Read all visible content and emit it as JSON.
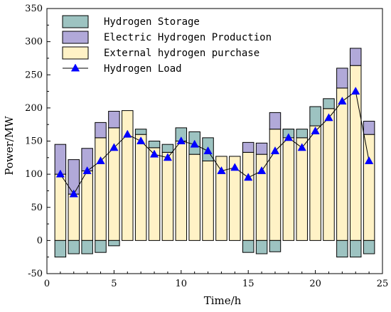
{
  "chart_data": {
    "type": "bar",
    "subtype": "stacked-bar-with-line",
    "xlabel": "Time/h",
    "ylabel": "Power/MW",
    "xlim": [
      0,
      25
    ],
    "ylim": [
      -50,
      350
    ],
    "xticks": [
      0,
      5,
      10,
      15,
      20,
      25
    ],
    "yticks": [
      -50,
      0,
      50,
      100,
      150,
      200,
      250,
      300,
      350
    ],
    "grid": false,
    "legend_position": "top-left",
    "x": [
      1,
      2,
      3,
      4,
      5,
      6,
      7,
      8,
      9,
      10,
      11,
      12,
      13,
      14,
      15,
      16,
      17,
      18,
      19,
      20,
      21,
      22,
      23,
      24
    ],
    "series": [
      {
        "name": "Hydrogen Storage",
        "kind": "bar",
        "color": "#9dc3c1",
        "values": [
          -25,
          -20,
          -20,
          -18,
          -8,
          0,
          0,
          0,
          0,
          0,
          0,
          0,
          0,
          0,
          -18,
          -20,
          -17,
          0,
          0,
          0,
          0,
          -25,
          -25,
          -20
        ]
      },
      {
        "name": "Electric Hydrogen Production",
        "kind": "bar",
        "color": "#b1a9d9",
        "values": [
          45,
          52,
          34,
          23,
          25,
          0,
          0,
          0,
          0,
          0,
          0,
          0,
          0,
          0,
          15,
          17,
          25,
          0,
          0,
          0,
          0,
          30,
          26,
          20
        ]
      },
      {
        "name": "External hydrogen purchase",
        "kind": "bar",
        "color": "#fff2c6",
        "values": [
          100,
          70,
          105,
          155,
          170,
          196,
          160,
          140,
          133,
          150,
          130,
          120,
          127,
          127,
          133,
          130,
          168,
          168,
          155,
          173,
          199,
          230,
          264,
          160
        ]
      },
      {
        "name": "Hydrogen Load",
        "kind": "line",
        "color": "#0000ff",
        "marker": "triangle",
        "values": [
          100,
          70,
          105,
          120,
          140,
          160,
          150,
          130,
          125,
          150,
          145,
          135,
          105,
          110,
          95,
          105,
          135,
          155,
          140,
          165,
          185,
          210,
          225,
          120
        ]
      }
    ],
    "extra_segments": [
      {
        "x": 7,
        "series": "Hydrogen Storage",
        "from": 160,
        "to": 168
      },
      {
        "x": 8,
        "series": "Hydrogen Storage",
        "from": 140,
        "to": 150
      },
      {
        "x": 9,
        "series": "Hydrogen Storage",
        "from": 133,
        "to": 145
      },
      {
        "x": 10,
        "series": "Hydrogen Storage",
        "from": 150,
        "to": 170
      },
      {
        "x": 11,
        "series": "Hydrogen Storage",
        "from": 130,
        "to": 164
      },
      {
        "x": 12,
        "series": "Hydrogen Storage",
        "from": 120,
        "to": 155
      },
      {
        "x": 18,
        "series": "Hydrogen Storage",
        "from": 155,
        "to": 168
      },
      {
        "x": 19,
        "series": "Hydrogen Storage",
        "from": 155,
        "to": 168
      },
      {
        "x": 20,
        "series": "Hydrogen Storage",
        "from": 173,
        "to": 202
      },
      {
        "x": 21,
        "series": "Hydrogen Storage",
        "from": 199,
        "to": 214
      }
    ]
  }
}
